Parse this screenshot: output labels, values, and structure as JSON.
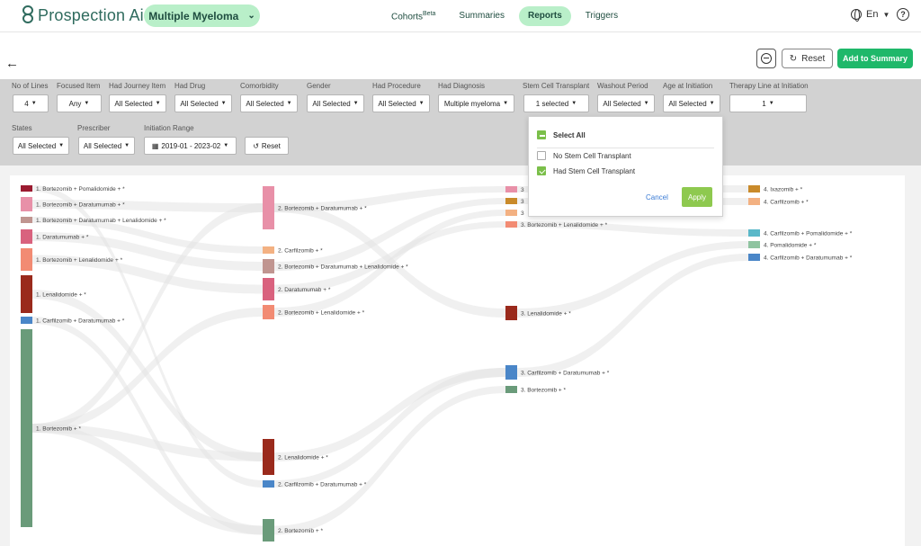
{
  "header": {
    "logo_text": "Prospection Ai",
    "disease": "Multiple Myeloma",
    "nav": [
      {
        "label": "Cohorts",
        "sup": "Beta",
        "active": false
      },
      {
        "label": "Summaries",
        "active": false
      },
      {
        "label": "Reports",
        "active": true
      },
      {
        "label": "Triggers",
        "active": false
      }
    ],
    "language": "En",
    "help": "?"
  },
  "toolbar": {
    "reset_label": "Reset",
    "add_summary_label": "Add to Summary"
  },
  "filters": {
    "no_of_lines": {
      "label": "No of Lines",
      "value": "4"
    },
    "focused_item": {
      "label": "Focused Item",
      "value": "Any"
    },
    "had_journey_item": {
      "label": "Had Journey Item",
      "value": "All Selected"
    },
    "had_drug": {
      "label": "Had Drug",
      "value": "All Selected"
    },
    "comorbidity": {
      "label": "Comorbidity",
      "value": "All Selected"
    },
    "gender": {
      "label": "Gender",
      "value": "All Selected"
    },
    "had_procedure": {
      "label": "Had Procedure",
      "value": "All Selected"
    },
    "had_diagnosis": {
      "label": "Had Diagnosis",
      "value": "Multiple myeloma"
    },
    "stem_cell_transplant": {
      "label": "Stem Cell Transplant",
      "value": "1 selected"
    },
    "washout_period": {
      "label": "Washout Period",
      "value": "All Selected"
    },
    "age_at_initiation": {
      "label": "Age at Initiation",
      "value": "All Selected"
    },
    "therapy_line": {
      "label": "Therapy Line at Initiation",
      "value": "1"
    },
    "states": {
      "label": "States",
      "value": "All Selected"
    },
    "prescriber": {
      "label": "Prescriber",
      "value": "All Selected"
    },
    "initiation_range": {
      "label": "Initiation Range",
      "value": "2019-01 - 2023-02"
    },
    "reset_label": "Reset"
  },
  "dropdown": {
    "select_all": "Select All",
    "options": [
      {
        "label": "No Stem Cell Transplant",
        "checked": false
      },
      {
        "label": "Had Stem Cell Transplant",
        "checked": true
      }
    ],
    "cancel": "Cancel",
    "apply": "Apply"
  },
  "sankey": {
    "columns": [
      {
        "nodes": [
          {
            "label": "1. Bortezomib + Pomalidomide + *",
            "color": "#9b1b30",
            "size": 2
          },
          {
            "label": "1. Bortezomib + Daratumumab + *",
            "color": "#e890a8",
            "size": 4
          },
          {
            "label": "1. Bortezomib + Daratumumab + Lenalidomide + *",
            "color": "#c09590",
            "size": 2
          },
          {
            "label": "1. Daratumumab + *",
            "color": "#d9627e",
            "size": 4
          },
          {
            "label": "1. Bortezomib + Lenalidomide + *",
            "color": "#f28b73",
            "size": 6
          },
          {
            "label": "1. Lenalidomide + *",
            "color": "#9a2a1c",
            "size": 10
          },
          {
            "label": "1. Carfilzomib + Daratumumab + *",
            "color": "#4a86c8",
            "size": 2
          },
          {
            "label": "1. Bortezomib + *",
            "color": "#6a9b7a",
            "size": 55
          }
        ]
      },
      {
        "nodes": [
          {
            "label": "2. Bortezomib + Daratumumab + *",
            "color": "#e890a8",
            "size": 12
          },
          {
            "label": "2. Carfilzomib + *",
            "color": "#f3b182",
            "size": 2
          },
          {
            "label": "2. Bortezomib + Daratumumab + Lenalidomide + *",
            "color": "#c09590",
            "size": 4
          },
          {
            "label": "2. Daratumumab + *",
            "color": "#d9627e",
            "size": 6
          },
          {
            "label": "2. Bortezomib + Lenalidomide + *",
            "color": "#f28b73",
            "size": 4
          },
          {
            "label": "2. Lenalidomide + *",
            "color": "#9a2a1c",
            "size": 10
          },
          {
            "label": "2. Carfilzomib + Daratumumab + *",
            "color": "#4a86c8",
            "size": 2
          },
          {
            "label": "2. Bortezomib + *",
            "color": "#6a9b7a",
            "size": 6
          }
        ]
      },
      {
        "nodes": [
          {
            "label": "3",
            "color": "#e890a8",
            "size": 2
          },
          {
            "label": "3",
            "color": "#c98a2a",
            "size": 2
          },
          {
            "label": "3",
            "color": "#f3b182",
            "size": 2
          },
          {
            "label": "3. Bortezomib + Lenalidomide + *",
            "color": "#f28b73",
            "size": 2
          },
          {
            "label": "3. Lenalidomide + *",
            "color": "#9a2a1c",
            "size": 4
          },
          {
            "label": "3. Carfilzomib + Daratumumab + *",
            "color": "#4a86c8",
            "size": 4
          },
          {
            "label": "3. Bortezomib + *",
            "color": "#6a9b7a",
            "size": 2
          }
        ]
      },
      {
        "nodes": [
          {
            "label": "4. Ixazomib + *",
            "color": "#c98a2a",
            "size": 2
          },
          {
            "label": "4. Carfilzomib + *",
            "color": "#f3b182",
            "size": 2
          },
          {
            "label": "4. Carfilzomib + Pomalidomide + *",
            "color": "#5ab8c9",
            "size": 2
          },
          {
            "label": "4. Pomalidomide + *",
            "color": "#8fc4a0",
            "size": 2
          },
          {
            "label": "4. Carfilzomib + Daratumumab + *",
            "color": "#4a86c8",
            "size": 2
          }
        ]
      }
    ]
  }
}
